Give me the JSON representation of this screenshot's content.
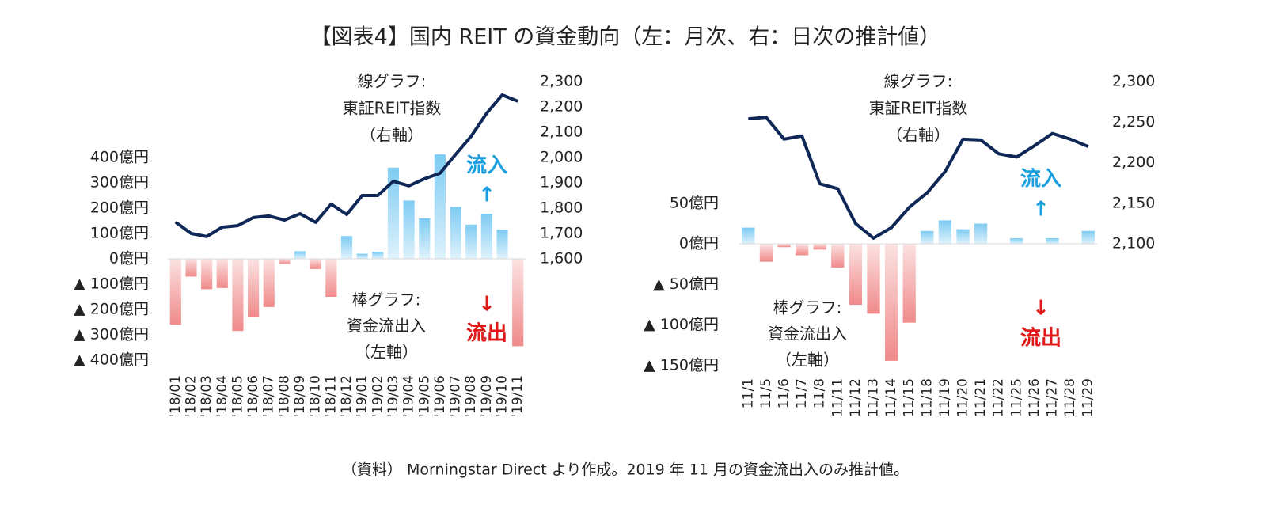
{
  "title": "【図表4】国内 REIT の資金動向（左：月次、右：日次の推計値）",
  "note": "（資料） Morningstar Direct より作成。2019 年 11 月の資金流出入のみ推計値。",
  "chart_data": [
    {
      "type": "combo",
      "categories": [
        "'18/01",
        "'18/02",
        "'18/03",
        "'18/04",
        "'18/05",
        "'18/06",
        "'18/07",
        "'18/08",
        "'18/09",
        "'18/10",
        "'18/11",
        "'18/12",
        "'19/01",
        "'19/02",
        "'19/03",
        "'19/04",
        "'19/05",
        "'19/06",
        "'19/07",
        "'19/08",
        "'19/09",
        "'19/10",
        "'19/11"
      ],
      "series": [
        {
          "type": "bar",
          "color": "#7ecbf2",
          "negative_color": "#f08a8a",
          "values": [
            -260,
            -70,
            -120,
            -115,
            -285,
            -230,
            -190,
            -20,
            30,
            -40,
            -150,
            90,
            20,
            28,
            360,
            230,
            160,
            412,
            205,
            135,
            178,
            115,
            -345
          ]
        },
        {
          "type": "line",
          "axis": "y2",
          "color": "#0e2756",
          "values": [
            1745,
            1700,
            1688,
            1725,
            1731,
            1763,
            1769,
            1753,
            1778,
            1744,
            1816,
            1775,
            1850,
            1850,
            1906,
            1888,
            1916,
            1938,
            2012,
            2084,
            2175,
            2247,
            2222
          ]
        }
      ],
      "ylim": [
        -400,
        700
      ],
      "yticks": [
        {
          "value": -400,
          "label": "▲ 400億円"
        },
        {
          "value": -300,
          "label": "▲ 300億円"
        },
        {
          "value": -200,
          "label": "▲ 200億円"
        },
        {
          "value": -100,
          "label": "▲ 100億円"
        },
        {
          "value": 0,
          "label": "0億円"
        },
        {
          "value": 100,
          "label": "100億円"
        },
        {
          "value": 200,
          "label": "200億円"
        },
        {
          "value": 300,
          "label": "300億円"
        },
        {
          "value": 400,
          "label": "400億円"
        }
      ],
      "y2lim": [
        1200,
        2300
      ],
      "y2ticks": [
        {
          "value": 1600,
          "label": "1,600"
        },
        {
          "value": 1700,
          "label": "1,700"
        },
        {
          "value": 1800,
          "label": "1,800"
        },
        {
          "value": 1900,
          "label": "1,900"
        },
        {
          "value": 2000,
          "label": "2,000"
        },
        {
          "value": 2100,
          "label": "2,100"
        },
        {
          "value": 2200,
          "label": "2,200"
        },
        {
          "value": 2300,
          "label": "2,300"
        }
      ],
      "annotations": [
        {
          "text": "線グラフ:"
        },
        {
          "text": "東証REIT指数"
        },
        {
          "text": "（右軸）"
        },
        {
          "text": "流入",
          "color": "#1a9fe0"
        },
        {
          "text": "↑",
          "color": "#1a9fe0"
        },
        {
          "text": "棒グラフ:"
        },
        {
          "text": "資金流出入"
        },
        {
          "text": "（左軸）"
        },
        {
          "text": "↓",
          "color": "#e01818"
        },
        {
          "text": "流出",
          "color": "#e01818"
        }
      ]
    },
    {
      "type": "combo",
      "categories": [
        "11/1",
        "11/5",
        "11/6",
        "11/7",
        "11/8",
        "11/11",
        "11/12",
        "11/13",
        "11/14",
        "11/15",
        "11/18",
        "11/19",
        "11/20",
        "11/21",
        "11/22",
        "11/25",
        "11/26",
        "11/27",
        "11/28",
        "11/29"
      ],
      "series": [
        {
          "type": "bar",
          "color": "#7ecbf2",
          "negative_color": "#f08a8a",
          "values": [
            20,
            -22,
            -4,
            -14,
            -7,
            -29,
            -75,
            -86,
            -144,
            -97,
            16,
            29,
            18,
            25,
            0,
            7,
            0,
            7,
            0,
            16
          ]
        },
        {
          "type": "line",
          "axis": "y2",
          "color": "#0e2756",
          "values": [
            2254,
            2256,
            2229,
            2233,
            2174,
            2168,
            2125,
            2107,
            2120,
            2145,
            2163,
            2189,
            2229,
            2228,
            2211,
            2207,
            2221,
            2236,
            2229,
            2220
          ]
        }
      ],
      "ylim": [
        -150,
        200
      ],
      "yticks": [
        {
          "value": -150,
          "label": "▲ 150億円"
        },
        {
          "value": -100,
          "label": "▲ 100億円"
        },
        {
          "value": -50,
          "label": "▲ 50億円"
        },
        {
          "value": 0,
          "label": "0億円"
        },
        {
          "value": 50,
          "label": "50億円"
        }
      ],
      "y2lim": [
        1950,
        2300
      ],
      "y2ticks": [
        {
          "value": 2100,
          "label": "2,100"
        },
        {
          "value": 2150,
          "label": "2,150"
        },
        {
          "value": 2200,
          "label": "2,200"
        },
        {
          "value": 2250,
          "label": "2,250"
        },
        {
          "value": 2300,
          "label": "2,300"
        }
      ],
      "annotations": [
        {
          "text": "線グラフ:"
        },
        {
          "text": "東証REIT指数"
        },
        {
          "text": "（右軸）"
        },
        {
          "text": "流入",
          "color": "#1a9fe0"
        },
        {
          "text": "↑",
          "color": "#1a9fe0"
        },
        {
          "text": "棒グラフ:"
        },
        {
          "text": "資金流出入"
        },
        {
          "text": "（左軸）"
        },
        {
          "text": "↓",
          "color": "#e01818"
        },
        {
          "text": "流出",
          "color": "#e01818"
        }
      ]
    }
  ]
}
